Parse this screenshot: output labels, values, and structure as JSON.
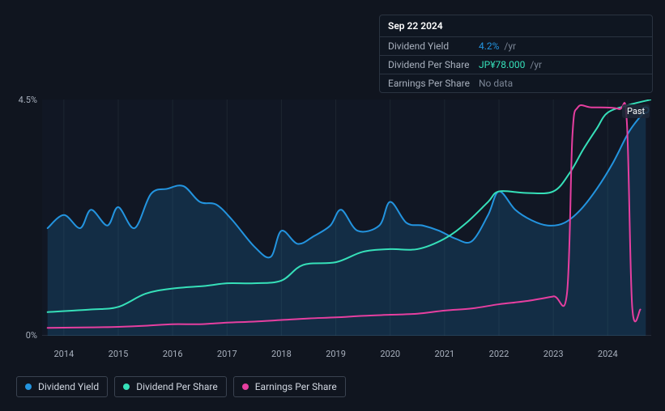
{
  "tooltip": {
    "date": "Sep 22 2024",
    "rows": [
      {
        "label": "Dividend Yield",
        "value": "4.2%",
        "suffix": "/yr",
        "value_color": "#2394df"
      },
      {
        "label": "Dividend Per Share",
        "value": "JP¥78.000",
        "suffix": "/yr",
        "value_color": "#36e0b9"
      },
      {
        "label": "Earnings Per Share",
        "value": "No data",
        "suffix": "",
        "value_color": "#7a8494"
      }
    ]
  },
  "chart": {
    "type": "line",
    "background_color": "#10151f",
    "plot_bg": "#10151f",
    "grid_color": "#1d2530",
    "ylim": [
      0,
      4.5
    ],
    "y_ticks": [
      {
        "v": 0,
        "label": "0%"
      },
      {
        "v": 4.5,
        "label": "4.5%"
      }
    ],
    "x_years": [
      2014,
      2015,
      2016,
      2017,
      2018,
      2019,
      2020,
      2021,
      2022,
      2023,
      2024
    ],
    "x_domain": [
      2013.6,
      2024.8
    ],
    "past_label": "Past",
    "series": [
      {
        "name": "Dividend Yield",
        "color": "#2394df",
        "fill": "rgba(35,148,223,0.18)",
        "width": 2,
        "points": [
          [
            2013.7,
            2.05
          ],
          [
            2014.0,
            2.3
          ],
          [
            2014.3,
            2.05
          ],
          [
            2014.5,
            2.4
          ],
          [
            2014.8,
            2.1
          ],
          [
            2015.0,
            2.45
          ],
          [
            2015.3,
            2.05
          ],
          [
            2015.6,
            2.7
          ],
          [
            2015.9,
            2.8
          ],
          [
            2016.2,
            2.85
          ],
          [
            2016.5,
            2.55
          ],
          [
            2016.8,
            2.5
          ],
          [
            2017.1,
            2.2
          ],
          [
            2017.5,
            1.7
          ],
          [
            2017.8,
            1.5
          ],
          [
            2018.0,
            2.0
          ],
          [
            2018.3,
            1.75
          ],
          [
            2018.6,
            1.9
          ],
          [
            2018.9,
            2.1
          ],
          [
            2019.1,
            2.4
          ],
          [
            2019.4,
            2.0
          ],
          [
            2019.8,
            2.1
          ],
          [
            2020.0,
            2.55
          ],
          [
            2020.3,
            2.15
          ],
          [
            2020.6,
            2.1
          ],
          [
            2020.9,
            2.0
          ],
          [
            2021.2,
            1.85
          ],
          [
            2021.5,
            1.8
          ],
          [
            2021.8,
            2.3
          ],
          [
            2022.0,
            2.75
          ],
          [
            2022.3,
            2.4
          ],
          [
            2022.6,
            2.2
          ],
          [
            2022.9,
            2.1
          ],
          [
            2023.2,
            2.15
          ],
          [
            2023.5,
            2.4
          ],
          [
            2023.8,
            2.8
          ],
          [
            2024.1,
            3.3
          ],
          [
            2024.4,
            3.9
          ],
          [
            2024.7,
            4.3
          ]
        ]
      },
      {
        "name": "Dividend Per Share",
        "color": "#36e0b9",
        "fill": "none",
        "width": 2,
        "points": [
          [
            2013.7,
            0.45
          ],
          [
            2014.5,
            0.5
          ],
          [
            2015.0,
            0.55
          ],
          [
            2015.5,
            0.8
          ],
          [
            2016.0,
            0.9
          ],
          [
            2016.6,
            0.95
          ],
          [
            2017.0,
            1.0
          ],
          [
            2017.5,
            1.0
          ],
          [
            2018.0,
            1.05
          ],
          [
            2018.4,
            1.35
          ],
          [
            2019.0,
            1.4
          ],
          [
            2019.5,
            1.6
          ],
          [
            2020.0,
            1.65
          ],
          [
            2020.5,
            1.65
          ],
          [
            2021.0,
            1.85
          ],
          [
            2021.4,
            2.15
          ],
          [
            2021.8,
            2.55
          ],
          [
            2022.0,
            2.75
          ],
          [
            2022.5,
            2.72
          ],
          [
            2023.0,
            2.75
          ],
          [
            2023.3,
            3.1
          ],
          [
            2023.55,
            3.55
          ],
          [
            2023.8,
            3.95
          ],
          [
            2024.0,
            4.25
          ],
          [
            2024.4,
            4.4
          ],
          [
            2024.8,
            4.5
          ]
        ]
      },
      {
        "name": "Earnings Per Share",
        "color": "#e63fa0",
        "fill": "none",
        "width": 2,
        "points": [
          [
            2013.7,
            0.15
          ],
          [
            2014.5,
            0.16
          ],
          [
            2015.0,
            0.17
          ],
          [
            2015.5,
            0.19
          ],
          [
            2016.0,
            0.22
          ],
          [
            2016.5,
            0.22
          ],
          [
            2017.0,
            0.25
          ],
          [
            2017.5,
            0.27
          ],
          [
            2018.0,
            0.3
          ],
          [
            2018.5,
            0.33
          ],
          [
            2019.0,
            0.35
          ],
          [
            2019.5,
            0.38
          ],
          [
            2020.0,
            0.4
          ],
          [
            2020.5,
            0.42
          ],
          [
            2021.0,
            0.48
          ],
          [
            2021.5,
            0.52
          ],
          [
            2022.0,
            0.6
          ],
          [
            2022.5,
            0.66
          ],
          [
            2023.0,
            0.75
          ],
          [
            2023.25,
            0.8
          ],
          [
            2023.35,
            3.8
          ],
          [
            2023.45,
            4.35
          ],
          [
            2023.7,
            4.35
          ],
          [
            2024.2,
            4.32
          ],
          [
            2024.35,
            4.1
          ],
          [
            2024.45,
            0.55
          ],
          [
            2024.6,
            0.5
          ]
        ]
      }
    ],
    "legend": [
      {
        "label": "Dividend Yield",
        "color": "#2394df"
      },
      {
        "label": "Dividend Per Share",
        "color": "#36e0b9"
      },
      {
        "label": "Earnings Per Share",
        "color": "#e63fa0"
      }
    ]
  }
}
